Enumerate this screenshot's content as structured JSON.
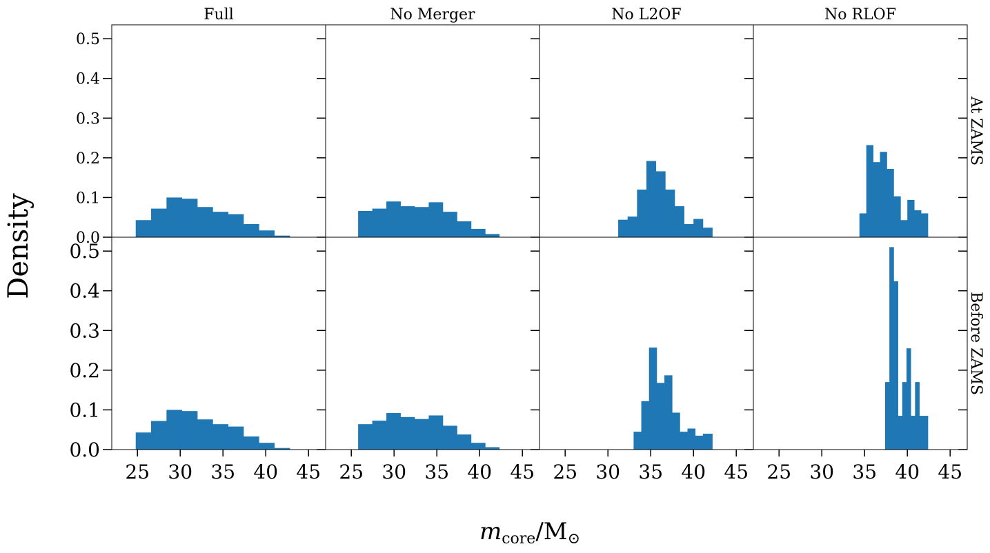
{
  "chart_data": {
    "type": "bar",
    "layout": "grid 2 rows x 4 columns, shared axes",
    "ylabel": "Density",
    "xlabel_math": "m",
    "xlabel_sub": "core",
    "xlabel_rest": "/M",
    "xlabel_sun": "⊙",
    "columns": [
      "Full",
      "No Merger",
      "No L2OF",
      "No RLOF"
    ],
    "rows": [
      "At ZAMS",
      "Before ZAMS"
    ],
    "xlim": [
      22,
      47
    ],
    "ylim": [
      0,
      0.535
    ],
    "xticks": [
      25,
      30,
      35,
      40,
      45
    ],
    "yticks": [
      0.0,
      0.1,
      0.2,
      0.3,
      0.4,
      0.5
    ],
    "bar_color": "#1f77b4",
    "panels": [
      {
        "row": 0,
        "col": 0,
        "edges": [
          24.8,
          26.6,
          28.4,
          30.2,
          32.0,
          33.8,
          35.6,
          37.4,
          39.2,
          41.0,
          42.8
        ],
        "values": [
          0.043,
          0.072,
          0.1,
          0.097,
          0.076,
          0.064,
          0.058,
          0.033,
          0.017,
          0.004
        ]
      },
      {
        "row": 0,
        "col": 1,
        "edges": [
          25.8,
          27.45,
          29.1,
          30.75,
          32.4,
          34.05,
          35.7,
          37.35,
          39.0,
          40.65,
          42.3
        ],
        "values": [
          0.066,
          0.072,
          0.09,
          0.078,
          0.076,
          0.088,
          0.064,
          0.04,
          0.021,
          0.008
        ]
      },
      {
        "row": 0,
        "col": 2,
        "edges": [
          31.2,
          32.3,
          33.4,
          34.5,
          35.6,
          36.7,
          37.8,
          38.9,
          40.0,
          41.1,
          42.2
        ],
        "values": [
          0.044,
          0.052,
          0.12,
          0.192,
          0.166,
          0.12,
          0.078,
          0.033,
          0.046,
          0.024
        ]
      },
      {
        "row": 0,
        "col": 3,
        "edges": [
          34.4,
          35.2,
          36.0,
          36.8,
          37.6,
          38.4,
          39.2,
          40.0,
          40.8,
          41.6,
          42.4
        ],
        "values": [
          0.06,
          0.232,
          0.189,
          0.215,
          0.172,
          0.103,
          0.043,
          0.094,
          0.068,
          0.06
        ]
      },
      {
        "row": 1,
        "col": 0,
        "edges": [
          24.8,
          26.6,
          28.4,
          30.2,
          32.0,
          33.8,
          35.6,
          37.4,
          39.2,
          41.0,
          42.8
        ],
        "values": [
          0.043,
          0.072,
          0.1,
          0.097,
          0.076,
          0.064,
          0.058,
          0.033,
          0.017,
          0.004
        ]
      },
      {
        "row": 1,
        "col": 1,
        "edges": [
          25.8,
          27.45,
          29.1,
          30.75,
          32.4,
          34.05,
          35.7,
          37.35,
          39.0,
          40.65,
          42.3
        ],
        "values": [
          0.064,
          0.073,
          0.092,
          0.082,
          0.077,
          0.086,
          0.06,
          0.038,
          0.017,
          0.006
        ]
      },
      {
        "row": 1,
        "col": 2,
        "edges": [
          33.0,
          33.9,
          34.8,
          35.7,
          36.6,
          37.5,
          38.4,
          39.3,
          40.2,
          41.1,
          42.2
        ],
        "values": [
          0.045,
          0.122,
          0.257,
          0.168,
          0.187,
          0.093,
          0.045,
          0.053,
          0.035,
          0.04
        ]
      },
      {
        "row": 1,
        "col": 3,
        "edges": [
          37.4,
          37.9,
          38.4,
          38.9,
          39.4,
          39.9,
          40.4,
          40.9,
          41.4,
          41.9,
          42.4
        ],
        "values": [
          0.17,
          0.51,
          0.424,
          0.085,
          0.17,
          0.255,
          0.085,
          0.17,
          0.085,
          0.085
        ]
      }
    ]
  }
}
